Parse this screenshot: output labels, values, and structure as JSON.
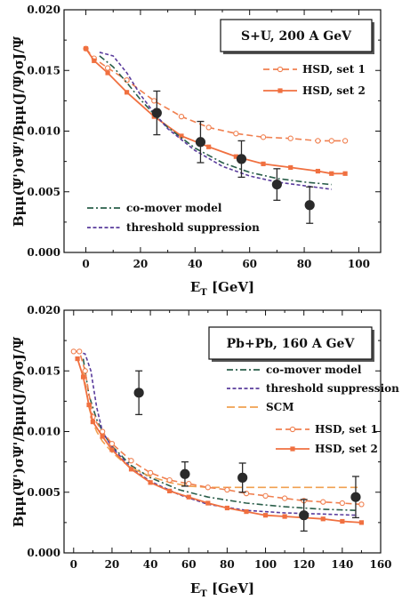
{
  "chart_data": [
    {
      "type": "line",
      "title": "S+U,  200 A GeV",
      "xlabel": "E",
      "xlabel_sub": "T",
      "xlabel_unit": "[GeV]",
      "ylabel": "Bμμ(Ψ')σΨ'/Bμμ(J/Ψ)σJ/Ψ",
      "xlim": [
        -8,
        108
      ],
      "ylim": [
        0,
        0.02
      ],
      "xticks": [
        "0",
        "20",
        "40",
        "60",
        "80",
        "100"
      ],
      "yticks": [
        "0.000",
        "0.005",
        "0.010",
        "0.015",
        "0.020"
      ],
      "grid": false,
      "legend_upper": "top-right",
      "legend_lower": "bottom-left",
      "series": [
        {
          "name": "HSD, set 1",
          "style": "dashed-open-circle",
          "color": "#f08050",
          "x": [
            0,
            3,
            8,
            15,
            25,
            35,
            45,
            55,
            65,
            75,
            85,
            90,
            95
          ],
          "y": [
            0.0168,
            0.016,
            0.0152,
            0.0142,
            0.0125,
            0.0112,
            0.0103,
            0.0098,
            0.0095,
            0.0094,
            0.0092,
            0.0092,
            0.0092
          ]
        },
        {
          "name": "HSD, set 2",
          "style": "solid-filled-square",
          "color": "#f07040",
          "x": [
            0,
            3,
            8,
            15,
            25,
            35,
            45,
            55,
            65,
            75,
            85,
            90,
            95
          ],
          "y": [
            0.0168,
            0.0158,
            0.0148,
            0.0132,
            0.0112,
            0.0096,
            0.0087,
            0.0079,
            0.0073,
            0.007,
            0.0067,
            0.0065,
            0.0065
          ]
        },
        {
          "name": "co-mover model",
          "style": "dash-dot",
          "color": "#2a5e4a",
          "x": [
            5,
            10,
            15,
            20,
            25,
            30,
            40,
            50,
            60,
            70,
            80,
            90
          ],
          "y": [
            0.0162,
            0.0153,
            0.014,
            0.0126,
            0.0114,
            0.0103,
            0.0086,
            0.0074,
            0.0066,
            0.0061,
            0.0058,
            0.0056
          ]
        },
        {
          "name": "threshold suppression",
          "style": "short-dash",
          "color": "#5a3c9c",
          "x": [
            5,
            10,
            15,
            20,
            25,
            30,
            40,
            50,
            60,
            70,
            80,
            90
          ],
          "y": [
            0.0165,
            0.0162,
            0.0148,
            0.013,
            0.0115,
            0.0102,
            0.0084,
            0.0071,
            0.0063,
            0.0058,
            0.0055,
            0.0052
          ]
        }
      ],
      "data_points": {
        "style": "filled-circle-errorbar",
        "color": "#2a2a2a",
        "x": [
          26,
          42,
          57,
          70,
          82
        ],
        "y": [
          0.0115,
          0.0091,
          0.0077,
          0.0056,
          0.0039
        ],
        "err": [
          0.0018,
          0.0017,
          0.0015,
          0.0013,
          0.0015
        ]
      }
    },
    {
      "type": "line",
      "title": "Pb+Pb,  160 A GeV",
      "xlabel": "E",
      "xlabel_sub": "T",
      "xlabel_unit": "[GeV]",
      "ylabel": "Bμμ(Ψ')σΨ'/Bμμ(J/Ψ)σJ/Ψ",
      "xlim": [
        -5,
        160
      ],
      "ylim": [
        0,
        0.02
      ],
      "xticks": [
        "0",
        "20",
        "40",
        "60",
        "80",
        "100",
        "120",
        "140",
        "160"
      ],
      "yticks": [
        "0.000",
        "0.005",
        "0.010",
        "0.015",
        "0.020"
      ],
      "grid": false,
      "legend_upper": "top-right",
      "legend_lower": "right",
      "series": [
        {
          "name": "co-mover model",
          "style": "dash-dot",
          "color": "#2a5e4a",
          "x": [
            5,
            8,
            12,
            16,
            20,
            30,
            40,
            55,
            70,
            90,
            110,
            130,
            148
          ],
          "y": [
            0.016,
            0.013,
            0.011,
            0.0097,
            0.0088,
            0.0072,
            0.0062,
            0.0052,
            0.0046,
            0.0041,
            0.0038,
            0.0036,
            0.0035
          ]
        },
        {
          "name": "threshold suppression",
          "style": "short-dash",
          "color": "#5a3c9c",
          "x": [
            2,
            6,
            9,
            12,
            15,
            20,
            30,
            40,
            55,
            70,
            90,
            110,
            130,
            148
          ],
          "y": [
            0.0166,
            0.0164,
            0.015,
            0.012,
            0.01,
            0.0087,
            0.007,
            0.0059,
            0.0048,
            0.004,
            0.0035,
            0.0033,
            0.0032,
            0.0031
          ]
        },
        {
          "name": "SCM",
          "style": "long-dash",
          "color": "#f0a050",
          "x": [
            5,
            8,
            10,
            12,
            15,
            20,
            25,
            30,
            40,
            50,
            60,
            70,
            80,
            100,
            120,
            148
          ],
          "y": [
            0.015,
            0.012,
            0.0108,
            0.01,
            0.0092,
            0.0083,
            0.0076,
            0.007,
            0.0063,
            0.0058,
            0.0055,
            0.0054,
            0.0054,
            0.0054,
            0.0054,
            0.0054
          ]
        },
        {
          "name": "HSD, set 1",
          "style": "dashed-open-circle",
          "color": "#f08050",
          "x": [
            0,
            3,
            6,
            10,
            15,
            20,
            30,
            40,
            50,
            60,
            70,
            80,
            90,
            100,
            110,
            120,
            130,
            140,
            150
          ],
          "y": [
            0.0166,
            0.0166,
            0.015,
            0.0112,
            0.01,
            0.009,
            0.0076,
            0.0066,
            0.006,
            0.0057,
            0.0054,
            0.0052,
            0.0049,
            0.0047,
            0.0045,
            0.0043,
            0.0042,
            0.0041,
            0.004
          ]
        },
        {
          "name": "HSD, set 2",
          "style": "solid-filled-square",
          "color": "#f07040",
          "x": [
            2,
            5,
            8,
            10,
            15,
            20,
            30,
            40,
            50,
            60,
            70,
            80,
            90,
            100,
            110,
            120,
            130,
            140,
            150
          ],
          "y": [
            0.016,
            0.0145,
            0.0122,
            0.0108,
            0.0096,
            0.0085,
            0.0069,
            0.0058,
            0.0051,
            0.0046,
            0.0041,
            0.0037,
            0.0034,
            0.0031,
            0.003,
            0.0029,
            0.0028,
            0.0026,
            0.0025
          ]
        }
      ],
      "data_points": {
        "style": "filled-circle-errorbar",
        "color": "#2a2a2a",
        "x": [
          34,
          58,
          88,
          120,
          147
        ],
        "y": [
          0.0132,
          0.0065,
          0.0062,
          0.0031,
          0.0046
        ],
        "err": [
          0.0018,
          0.001,
          0.0012,
          0.0013,
          0.0017
        ]
      }
    }
  ]
}
